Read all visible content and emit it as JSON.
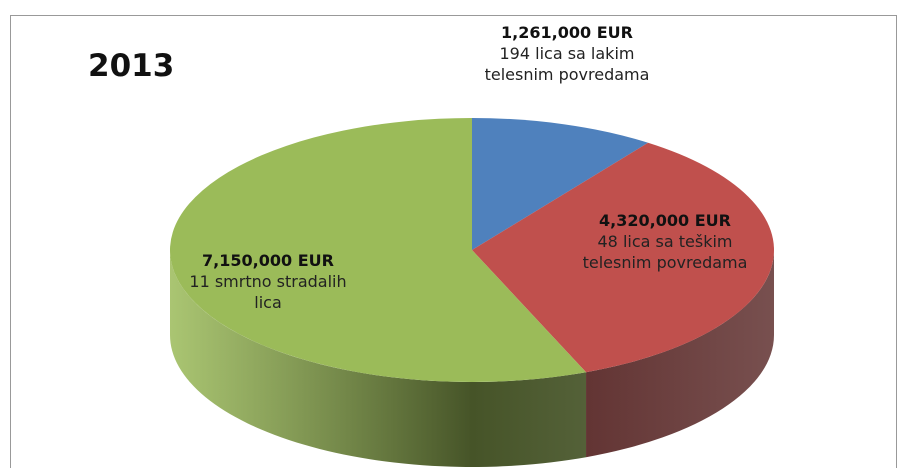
{
  "chart_data": {
    "type": "pie",
    "title": "2013",
    "categories": [
      "194 lica sa lakim telesnim povredama",
      "48 lica sa teškim telesnim povredama",
      "11 smrtno stradalih lica"
    ],
    "values": [
      1261000,
      4320000,
      7150000
    ],
    "value_labels": [
      "1,261,000 EUR",
      "4,320,000 EUR",
      "7,150,000 EUR"
    ],
    "colors": [
      "#4f81bd",
      "#c0504d",
      "#9bbb59"
    ]
  }
}
